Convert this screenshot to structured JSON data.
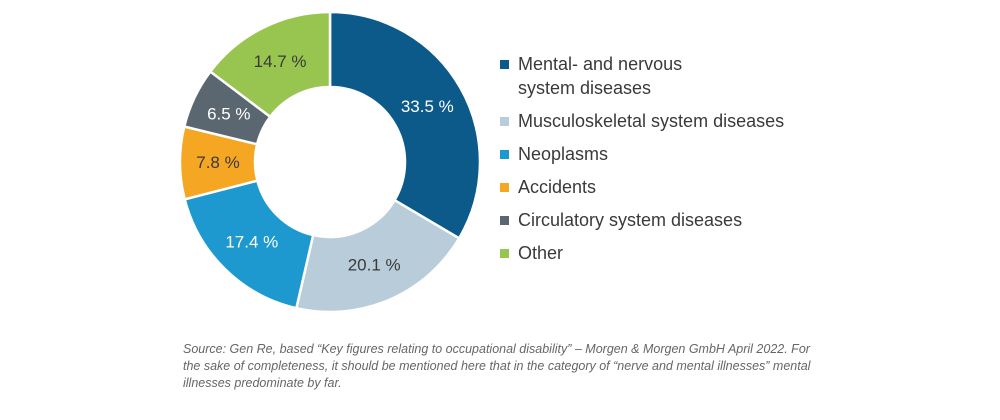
{
  "chart_data": {
    "type": "pie",
    "variant": "donut",
    "categories": [
      "Mental- and nervous system diseases",
      "Musculoskeletal system diseases",
      "Neoplasms",
      "Accidents",
      "Circulatory system diseases",
      "Other"
    ],
    "values": [
      33.5,
      20.1,
      17.4,
      7.8,
      6.5,
      14.7
    ],
    "data_labels": [
      "33.5 %",
      "20.1 %",
      "17.4 %",
      "7.8 %",
      "6.5 %",
      "14.7 %"
    ],
    "colors": [
      "#0c5a8a",
      "#b8ccda",
      "#1d99cf",
      "#f5a623",
      "#5b6770",
      "#98c54f"
    ],
    "label_colors": [
      "#ffffff",
      "#3a3a3a",
      "#ffffff",
      "#3a3a3a",
      "#ffffff",
      "#3a3a3a"
    ],
    "start_angle": "12 o'clock",
    "direction": "clockwise",
    "legend_position": "right"
  },
  "source_note": "Source: Gen Re, based “Key figures relating to occupational disability” – Morgen & Morgen GmbH April 2022. For the sake of completeness, it should be mentioned here that in the category of “nerve and mental illnesses” mental illnesses predominate by far."
}
